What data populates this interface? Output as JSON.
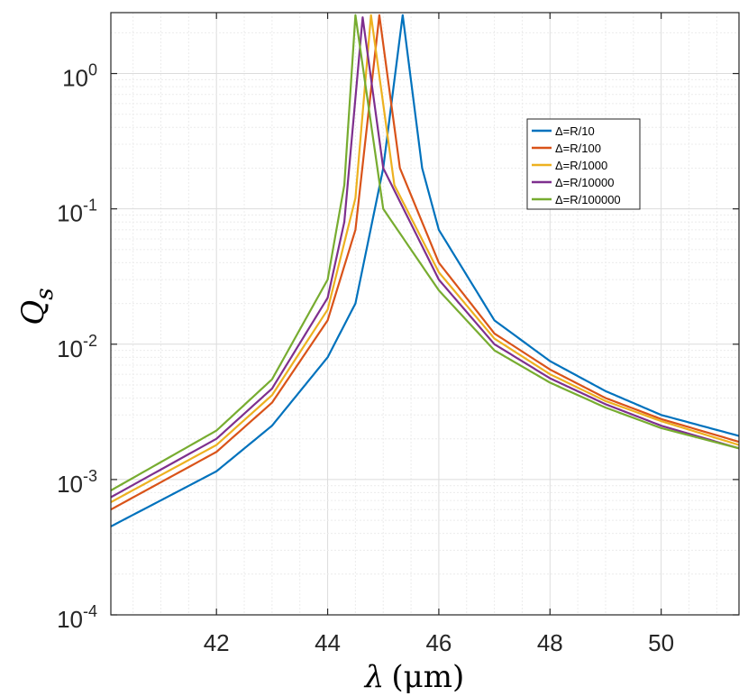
{
  "chart_data": {
    "type": "line",
    "title": "",
    "xlabel_symbol": "λ",
    "xlabel_unit": "(μm)",
    "ylabel_main": "Q",
    "ylabel_sub": "s",
    "xlim": [
      40.1,
      51.4
    ],
    "ylim_log10": [
      -4,
      0.45
    ],
    "yscale": "log",
    "grid": true,
    "legend_position": "top-right",
    "x_ticks": [
      {
        "value": 42,
        "label": "42"
      },
      {
        "value": 44,
        "label": "44"
      },
      {
        "value": 46,
        "label": "46"
      },
      {
        "value": 48,
        "label": "48"
      },
      {
        "value": 50,
        "label": "50"
      }
    ],
    "y_ticks": [
      {
        "exp": 0,
        "base": "10",
        "sup": "0"
      },
      {
        "exp": -1,
        "base": "10",
        "sup": "-1"
      },
      {
        "exp": -2,
        "base": "10",
        "sup": "-2"
      },
      {
        "exp": -3,
        "base": "10",
        "sup": "-3"
      },
      {
        "exp": -4,
        "base": "10",
        "sup": "-4"
      }
    ],
    "series": [
      {
        "name": "Δ=R/10",
        "color": "#0072BD",
        "peak_x": 45.35,
        "peak_y": 2.7,
        "points": [
          [
            40.1,
            0.00045
          ],
          [
            42,
            0.00115
          ],
          [
            43,
            0.0025
          ],
          [
            44,
            0.008
          ],
          [
            44.5,
            0.02
          ],
          [
            45,
            0.2
          ],
          [
            45.35,
            2.7
          ],
          [
            45.7,
            0.2
          ],
          [
            46,
            0.07
          ],
          [
            47,
            0.015
          ],
          [
            48,
            0.0075
          ],
          [
            49,
            0.0045
          ],
          [
            50,
            0.003
          ],
          [
            51.4,
            0.0021
          ]
        ]
      },
      {
        "name": "Δ=R/100",
        "color": "#D95319",
        "peak_x": 44.93,
        "peak_y": 2.7,
        "points": [
          [
            40.1,
            0.0006
          ],
          [
            42,
            0.0016
          ],
          [
            43,
            0.0037
          ],
          [
            44,
            0.015
          ],
          [
            44.5,
            0.07
          ],
          [
            44.93,
            2.7
          ],
          [
            45.3,
            0.2
          ],
          [
            46,
            0.04
          ],
          [
            47,
            0.012
          ],
          [
            48,
            0.0065
          ],
          [
            49,
            0.004
          ],
          [
            50,
            0.0028
          ],
          [
            51.4,
            0.0019
          ]
        ]
      },
      {
        "name": "Δ=R/1000",
        "color": "#EDB120",
        "peak_x": 44.78,
        "peak_y": 2.7,
        "points": [
          [
            40.1,
            0.00068
          ],
          [
            42,
            0.0018
          ],
          [
            43,
            0.0042
          ],
          [
            44,
            0.018
          ],
          [
            44.5,
            0.12
          ],
          [
            44.78,
            2.7
          ],
          [
            45.2,
            0.15
          ],
          [
            46,
            0.034
          ],
          [
            47,
            0.011
          ],
          [
            48,
            0.006
          ],
          [
            49,
            0.0038
          ],
          [
            50,
            0.0027
          ],
          [
            51.4,
            0.0018
          ]
        ]
      },
      {
        "name": "Δ=R/10000",
        "color": "#7E2F8E",
        "peak_x": 44.63,
        "peak_y": 2.6,
        "points": [
          [
            40.1,
            0.00074
          ],
          [
            42,
            0.002
          ],
          [
            43,
            0.0047
          ],
          [
            44,
            0.022
          ],
          [
            44.3,
            0.08
          ],
          [
            44.63,
            2.6
          ],
          [
            45,
            0.2
          ],
          [
            46,
            0.03
          ],
          [
            47,
            0.01
          ],
          [
            48,
            0.0056
          ],
          [
            49,
            0.0036
          ],
          [
            50,
            0.0025
          ],
          [
            51.4,
            0.0017
          ]
        ]
      },
      {
        "name": "Δ=R/100000",
        "color": "#77AC30",
        "peak_x": 44.5,
        "peak_y": 2.7,
        "points": [
          [
            40.1,
            0.00083
          ],
          [
            42,
            0.0023
          ],
          [
            43,
            0.0055
          ],
          [
            44,
            0.03
          ],
          [
            44.3,
            0.15
          ],
          [
            44.5,
            2.7
          ],
          [
            45,
            0.1
          ],
          [
            46,
            0.025
          ],
          [
            47,
            0.009
          ],
          [
            48,
            0.0052
          ],
          [
            49,
            0.0034
          ],
          [
            50,
            0.0024
          ],
          [
            51.4,
            0.0017
          ]
        ]
      }
    ]
  }
}
